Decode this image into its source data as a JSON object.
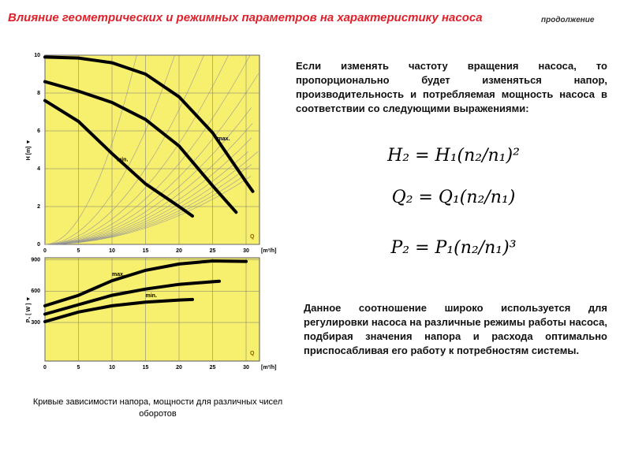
{
  "header": {
    "title": "Влияние геометрических и режимных параметров на характеристику насоса",
    "note": "продолжение"
  },
  "chart_data": [
    {
      "type": "line",
      "ylabel": "H [m] ▼",
      "xlabel": "[m³/h]",
      "annotation": "Q",
      "xlim": [
        0,
        32
      ],
      "xticks": [
        0,
        5,
        10,
        15,
        20,
        25,
        30
      ],
      "ylim": [
        0,
        10
      ],
      "yticks": [
        0,
        2,
        4,
        6,
        8,
        10
      ],
      "grid": true,
      "color": "#000000",
      "background": "#f7ef6e",
      "series": [
        {
          "name": "max.",
          "x": [
            0,
            5,
            10,
            15,
            20,
            25,
            30,
            31
          ],
          "values": [
            9.9,
            9.85,
            9.6,
            9.0,
            7.8,
            5.9,
            3.3,
            2.8
          ]
        },
        {
          "x": [
            0,
            5,
            10,
            15,
            20,
            25,
            28.5
          ],
          "values": [
            8.6,
            8.1,
            7.5,
            6.6,
            5.2,
            3.1,
            1.7
          ]
        },
        {
          "name": "min.",
          "x": [
            0,
            5,
            10,
            15,
            20,
            22
          ],
          "values": [
            7.6,
            6.5,
            4.8,
            3.2,
            2.0,
            1.5
          ]
        }
      ]
    },
    {
      "type": "line",
      "ylabel": "P₁ [ W ] ▼",
      "xlabel": "[m³/h]",
      "annotation": "Q",
      "xlim": [
        0,
        32
      ],
      "xticks": [
        0,
        5,
        10,
        15,
        20,
        25,
        30
      ],
      "ylim": [
        -70,
        920
      ],
      "yticks": [
        300,
        600,
        900
      ],
      "grid": true,
      "color": "#000000",
      "background": "#f7ef6e",
      "series": [
        {
          "name": "max.",
          "x": [
            0,
            5,
            10,
            15,
            20,
            25,
            30
          ],
          "values": [
            460,
            560,
            700,
            800,
            860,
            890,
            885
          ]
        },
        {
          "x": [
            0,
            5,
            10,
            15,
            20,
            25,
            26
          ],
          "values": [
            380,
            470,
            560,
            620,
            665,
            690,
            695
          ]
        },
        {
          "name": "min.",
          "x": [
            0,
            5,
            10,
            15,
            20,
            22
          ],
          "values": [
            308,
            400,
            460,
            495,
            515,
            520
          ]
        }
      ]
    }
  ],
  "caption": "Кривые зависимости напора, мощности для различных чисел оборотов",
  "paragraph_1": "Если изменять частоту вращения насоса, то пропорционально будет изменяться напор, производительность и потребляемая мощность насоса в соответствии со следующими выражениями:",
  "formulas": [
    "H₂ = H₁(n₂/n₁)²",
    "Q₂ = Q₁(n₂/n₁)",
    "P₂ = P₁(n₂/n₁)³"
  ],
  "paragraph_2": "Данное соотношение широко используется для регулировки насоса на различные режимы работы насоса, подбирая значения напора и расхода оптимально приспосабливая его работу к потребностям системы."
}
